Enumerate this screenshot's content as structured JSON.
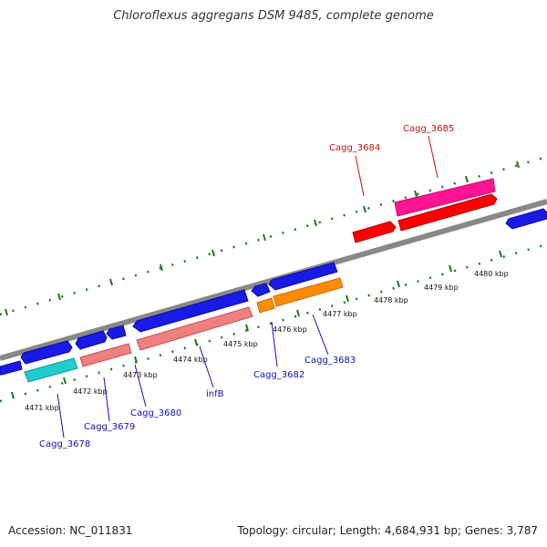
{
  "title": "Chloroflexus aggregans DSM 9485, complete genome",
  "footer": {
    "accession": "Accession: NC_011831",
    "summary": "Topology: circular; Length: 4,684,931 bp; Genes: 3,787"
  },
  "scale_labels": [
    "4471 kbp",
    "4472 kbp",
    "4473 kbp",
    "4474 kbp",
    "4475 kbp",
    "4476 kbp",
    "4477 kbp",
    "4478 kbp",
    "4479 kbp",
    "4480 kbp"
  ],
  "gene_labels": {
    "cagg_3678": "Cagg_3678",
    "cagg_3679": "Cagg_3679",
    "cagg_3680": "Cagg_3680",
    "infB": "infB",
    "cagg_3682": "Cagg_3682",
    "cagg_3683": "Cagg_3683",
    "cagg_3684": "Cagg_3684",
    "cagg_3685": "Cagg_3685"
  },
  "colors": {
    "backbone": "#888888",
    "plus_strand_gene": "#1a1ae6",
    "cyan_gene": "#22cccc",
    "pink_gene": "#f08080",
    "orange_gene": "#ff8c00",
    "red_gene": "#ff0000",
    "magenta_gene": "#ff1493",
    "tick": "#1a7a1a",
    "label_blue": "#1010bb",
    "label_red": "#cc1010"
  }
}
